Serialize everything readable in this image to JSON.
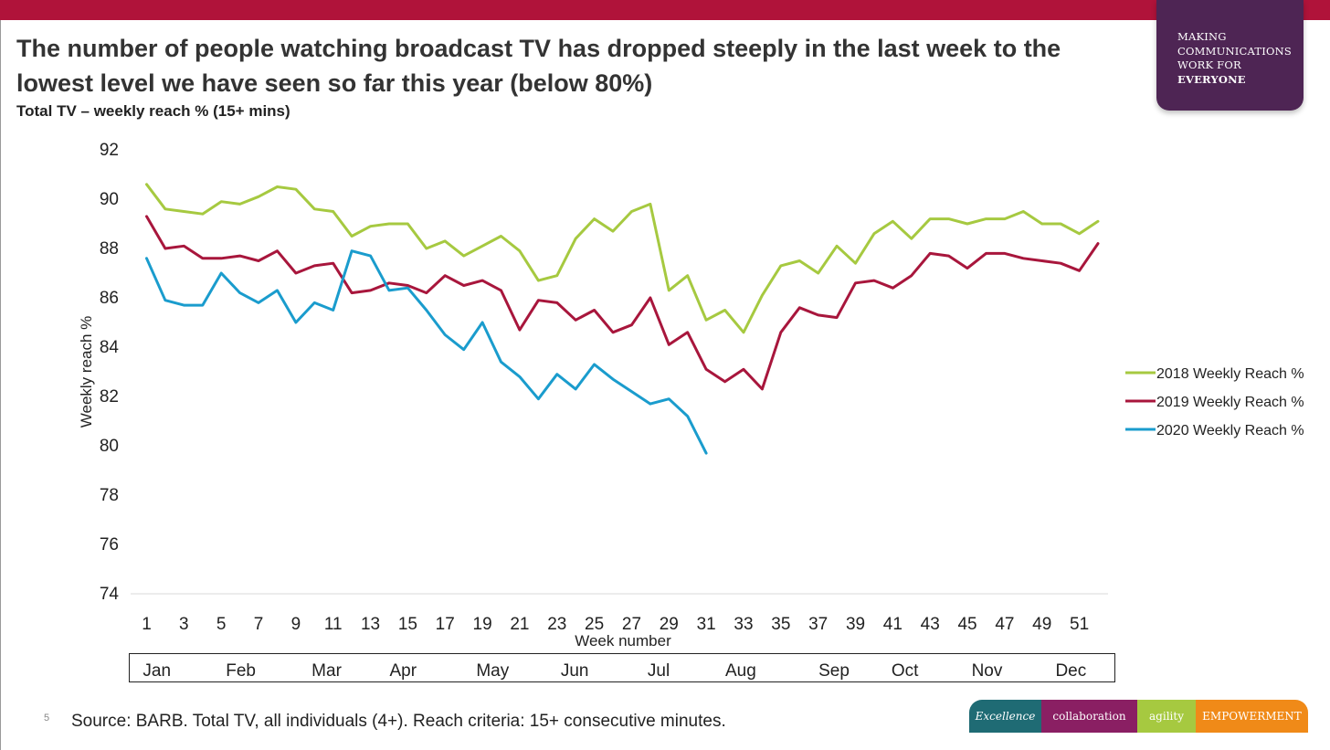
{
  "header": {
    "title": "The number of people watching broadcast TV has dropped steeply in the last week to the lowest level we have seen so far this year (below 80%)",
    "subtitle": "Total TV – weekly reach % (15+ mins)"
  },
  "logo": {
    "lines": [
      "MAKING",
      "COMMUNICATIONS",
      "WORK FOR",
      "EVERYONE"
    ],
    "background": "#4e2554"
  },
  "footer": {
    "page_number": "5",
    "source": "Source: BARB. Total TV, all individuals (4+). Reach criteria: 15+ consecutive minutes.",
    "values": [
      {
        "label": "Excellence",
        "color": "#1f6b74"
      },
      {
        "label": "collaboration",
        "color": "#8a1f63"
      },
      {
        "label": "agility",
        "color": "#a6c940"
      },
      {
        "label": "EMPOWERMENT",
        "color": "#f08a18"
      }
    ]
  },
  "colors": {
    "top_bar": "#b0133a"
  },
  "months": [
    {
      "label": "Jan",
      "week": 1.5
    },
    {
      "label": "Feb",
      "week": 6
    },
    {
      "label": "Mar",
      "week": 10.6
    },
    {
      "label": "Apr",
      "week": 14.7
    },
    {
      "label": "May",
      "week": 19.5
    },
    {
      "label": "Jun",
      "week": 23.9
    },
    {
      "label": "Jul",
      "week": 28.4
    },
    {
      "label": "Aug",
      "week": 32.8
    },
    {
      "label": "Sep",
      "week": 37.8
    },
    {
      "label": "Oct",
      "week": 41.6
    },
    {
      "label": "Nov",
      "week": 46
    },
    {
      "label": "Dec",
      "week": 50.5
    }
  ],
  "chart_data": {
    "type": "line",
    "xlabel": "Week number",
    "ylabel": "Weekly reach %",
    "xlim": [
      1,
      52
    ],
    "ylim": [
      74,
      92
    ],
    "yticks": [
      74,
      76,
      78,
      80,
      82,
      84,
      86,
      88,
      90,
      92
    ],
    "xticks": [
      1,
      3,
      5,
      7,
      9,
      11,
      13,
      15,
      17,
      19,
      21,
      23,
      25,
      27,
      29,
      31,
      33,
      35,
      37,
      39,
      41,
      43,
      45,
      47,
      49,
      51
    ],
    "grid": false,
    "legend_position": "right",
    "series": [
      {
        "name": "2018 Weekly Reach %",
        "color": "#a6c940",
        "x": [
          1,
          2,
          3,
          4,
          5,
          6,
          7,
          8,
          9,
          10,
          11,
          12,
          13,
          14,
          15,
          16,
          17,
          18,
          19,
          20,
          21,
          22,
          23,
          24,
          25,
          26,
          27,
          28,
          29,
          30,
          31,
          32,
          33,
          34,
          35,
          36,
          37,
          38,
          39,
          40,
          41,
          42,
          43,
          44,
          45,
          46,
          47,
          48,
          49,
          50,
          51,
          52
        ],
        "values": [
          90.6,
          89.6,
          89.5,
          89.4,
          89.9,
          89.8,
          90.1,
          90.5,
          90.4,
          89.6,
          89.5,
          88.5,
          88.9,
          89.0,
          89.0,
          88.0,
          88.3,
          87.7,
          88.1,
          88.5,
          87.9,
          86.7,
          86.9,
          88.4,
          89.2,
          88.7,
          89.5,
          89.8,
          86.3,
          86.9,
          85.1,
          85.5,
          84.6,
          86.1,
          87.3,
          87.5,
          87.0,
          88.1,
          87.4,
          88.6,
          89.1,
          88.4,
          89.2,
          89.2,
          89.0,
          89.2,
          89.2,
          89.5,
          89.0,
          89.0,
          88.6,
          89.1
        ]
      },
      {
        "name": "2019 Weekly Reach %",
        "color": "#a8163c",
        "x": [
          1,
          2,
          3,
          4,
          5,
          6,
          7,
          8,
          9,
          10,
          11,
          12,
          13,
          14,
          15,
          16,
          17,
          18,
          19,
          20,
          21,
          22,
          23,
          24,
          25,
          26,
          27,
          28,
          29,
          30,
          31,
          32,
          33,
          34,
          35,
          36,
          37,
          38,
          39,
          40,
          41,
          42,
          43,
          44,
          45,
          46,
          47,
          48,
          49,
          50,
          51,
          52
        ],
        "values": [
          89.3,
          88.0,
          88.1,
          87.6,
          87.6,
          87.7,
          87.5,
          87.9,
          87.0,
          87.3,
          87.4,
          86.2,
          86.3,
          86.6,
          86.5,
          86.2,
          86.9,
          86.5,
          86.7,
          86.3,
          84.7,
          85.9,
          85.8,
          85.1,
          85.5,
          84.6,
          84.9,
          86.0,
          84.1,
          84.6,
          83.1,
          82.6,
          83.1,
          82.3,
          84.6,
          85.6,
          85.3,
          85.2,
          86.6,
          86.7,
          86.4,
          86.9,
          87.8,
          87.7,
          87.2,
          87.8,
          87.8,
          87.6,
          87.5,
          87.4,
          87.1,
          88.2
        ]
      },
      {
        "name": "2020 Weekly Reach %",
        "color": "#1a9ccd",
        "x": [
          1,
          2,
          3,
          4,
          5,
          6,
          7,
          8,
          9,
          10,
          11,
          12,
          13,
          14,
          15,
          16,
          17,
          18,
          19,
          20,
          21,
          22,
          23,
          24,
          25,
          26,
          27,
          28,
          29,
          30,
          31
        ],
        "values": [
          87.6,
          85.9,
          85.7,
          85.7,
          87.0,
          86.2,
          85.8,
          86.3,
          85.0,
          85.8,
          85.5,
          87.9,
          87.7,
          86.3,
          86.4,
          85.5,
          84.5,
          83.9,
          85.0,
          83.4,
          82.8,
          81.9,
          82.9,
          82.3,
          83.3,
          82.7,
          82.2,
          81.7,
          81.9,
          81.2,
          79.7
        ]
      }
    ]
  }
}
